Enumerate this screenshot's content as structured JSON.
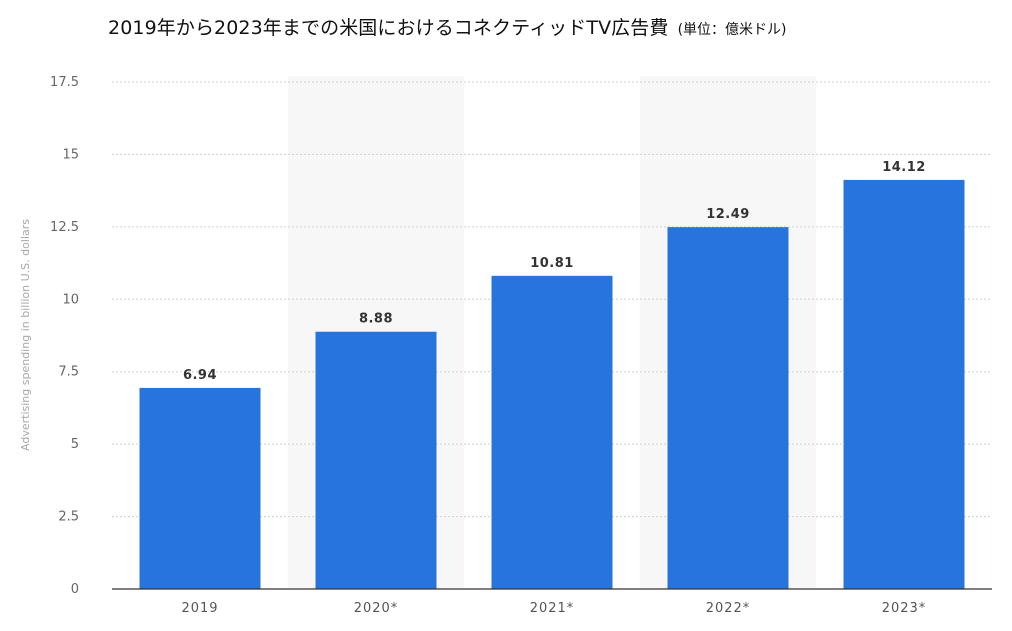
{
  "page": {
    "title": "2019年から2023年までの米国におけるコネクティッドTV広告費",
    "unit": "(単位：億米ドル)"
  },
  "colors": {
    "bar": "#2874de",
    "band": "#f7f7f7",
    "grid": "#cfcfcf",
    "axis": "#333333",
    "text": "#333333"
  },
  "chart_data": {
    "type": "bar",
    "title": "2019年から2023年までの米国におけるコネクティッドTV広告費",
    "subtitle": "(単位：億米ドル)",
    "xlabel": "",
    "ylabel": "Advertising spending in billion U.S. dollars",
    "ylim": [
      0,
      17.5
    ],
    "yticks": [
      0,
      2.5,
      5,
      7.5,
      10,
      12.5,
      15,
      17.5
    ],
    "ytick_labels": [
      "0",
      "2.5",
      "5",
      "7.5",
      "10",
      "12.5",
      "15",
      "17.5"
    ],
    "categories": [
      "2019",
      "2020*",
      "2021*",
      "2022*",
      "2023*"
    ],
    "values": [
      6.94,
      8.88,
      10.81,
      12.49,
      14.12
    ],
    "value_labels": [
      "6.94",
      "8.88",
      "10.81",
      "12.49",
      "14.12"
    ],
    "grid": true,
    "legend": "none"
  }
}
